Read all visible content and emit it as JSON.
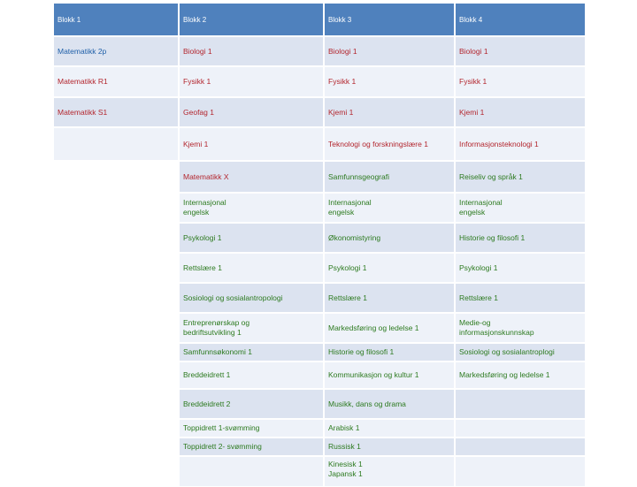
{
  "header": [
    "Blokk 1",
    "Blokk 2",
    "Blokk 3",
    "Blokk 4"
  ],
  "rows": [
    [
      "Matematikk 2p",
      "Biologi 1",
      "Biologi 1",
      "Biologi 1"
    ],
    [
      "Matematikk R1",
      "Fysikk 1",
      "Fysikk 1",
      "Fysikk 1"
    ],
    [
      "Matematikk S1",
      "Geofag 1",
      "Kjemi 1",
      "Kjemi 1"
    ],
    [
      "",
      "Kjemi 1",
      "Teknologi og forskningslære 1",
      "Informasjonsteknologi 1"
    ],
    [
      "",
      "Matematikk X",
      "Samfunnsgeografi",
      "Reiseliv og språk 1"
    ],
    [
      "",
      "Internasjonal\nengelsk",
      "Internasjonal\nengelsk",
      "Internasjonal\nengelsk"
    ],
    [
      "",
      "Psykologi 1",
      "Økonomistyring",
      "Historie og filosofi 1"
    ],
    [
      "",
      "Rettslære  1",
      "Psykologi 1",
      "Psykologi 1"
    ],
    [
      "",
      "Sosiologi og sosialantropologi",
      "Rettslære 1",
      "Rettslære 1"
    ],
    [
      "",
      "Entreprenørskap og\nbedriftsutvikling 1",
      "Markedsføring og ledelse 1",
      "Medie-og\ninformasjonskunnskap"
    ],
    [
      "",
      "Samfunnsøkonomi 1",
      "Historie og filosofi 1",
      "Sosiologi og sosialantroplogi"
    ],
    [
      "",
      "Breddeidrett 1",
      "Kommunikasjon og kultur 1",
      "Markedsføring og ledelse 1"
    ],
    [
      "",
      "Breddeidrett 2",
      "Musikk, dans og drama",
      ""
    ],
    [
      "",
      "Toppidrett 1-svømming",
      "Arabisk 1",
      ""
    ],
    [
      "",
      "Toppidrett 2- svømming",
      "Russisk 1",
      ""
    ],
    [
      "",
      "",
      "Kinesisk 1\nJapansk  1",
      ""
    ]
  ],
  "colors": {
    "header_bg": "#4f81bd",
    "row_light": "#dce3f0",
    "row_pale": "#eef2f9",
    "blue_text": "#1f5fa8",
    "red_text": "#b3262e",
    "green_text": "#2c7a1f"
  }
}
